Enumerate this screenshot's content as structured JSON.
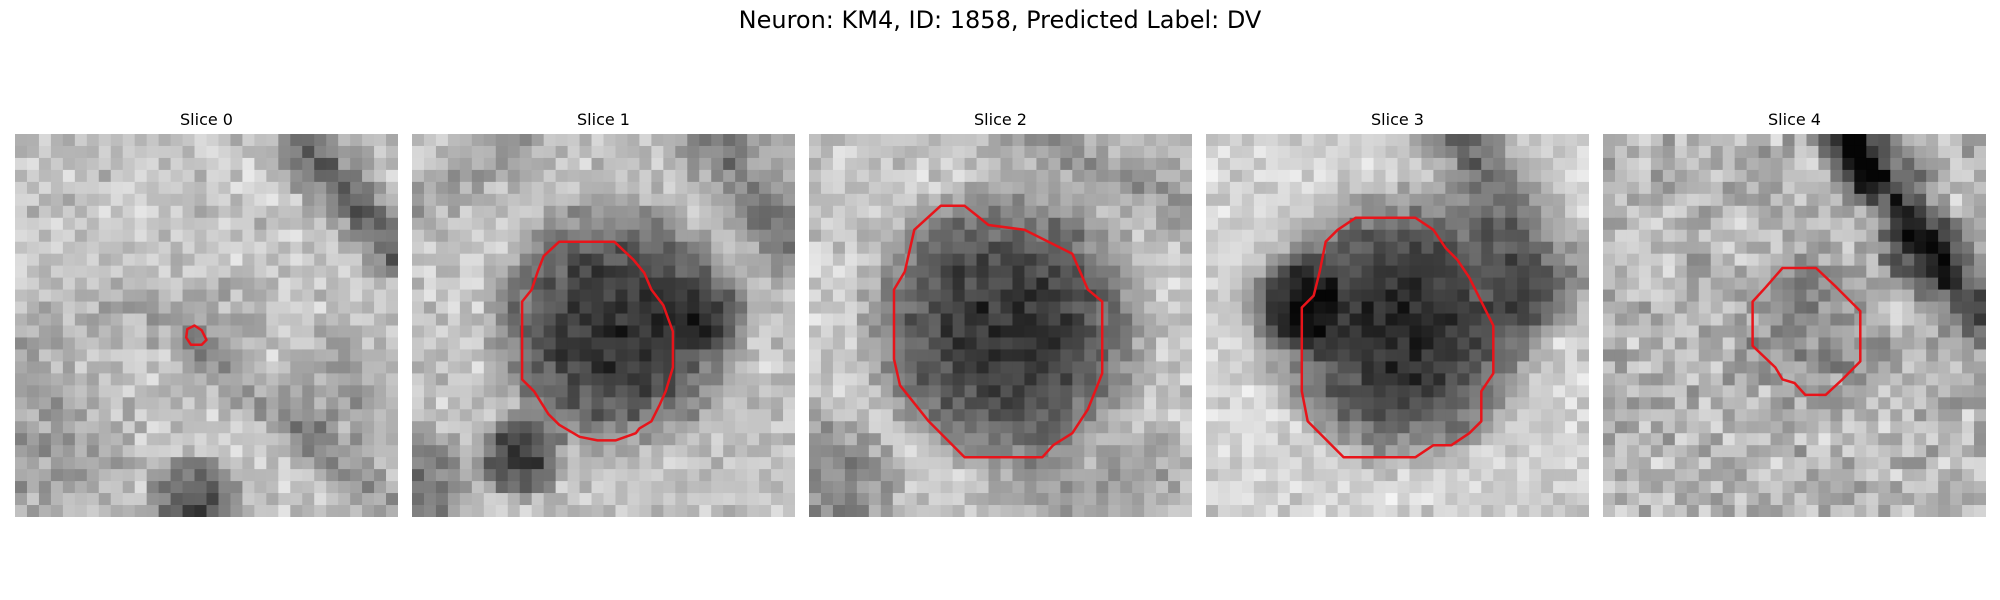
{
  "figure": {
    "title": "Neuron: KM4, ID: 1858, Predicted Label: DV",
    "outline_color": "#e8141a"
  },
  "panels": [
    {
      "title": "Slice 0"
    },
    {
      "title": "Slice 1"
    },
    {
      "title": "Slice 2"
    },
    {
      "title": "Slice 3"
    },
    {
      "title": "Slice 4"
    }
  ]
}
